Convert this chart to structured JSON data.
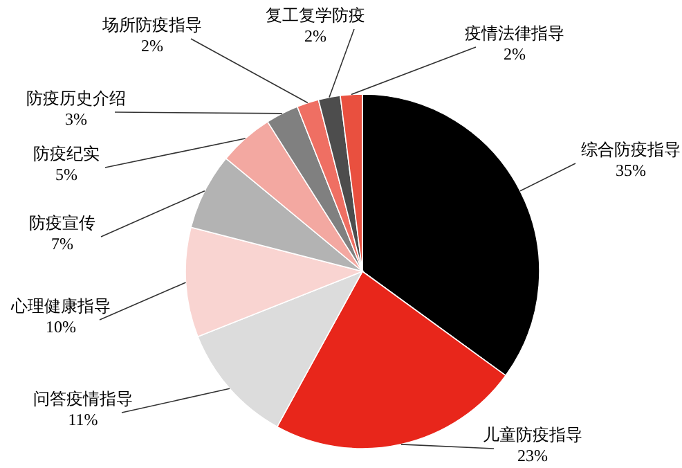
{
  "chart_data": {
    "type": "pie",
    "categories": [
      "综合防疫指导",
      "儿童防疫指导",
      "问答疫情指导",
      "心理健康指导",
      "防疫宣传",
      "防疫纪实",
      "防疫历史介绍",
      "场所防疫指导",
      "复工复学防疫",
      "疫情法律指导"
    ],
    "values": [
      35,
      23,
      11,
      10,
      7,
      5,
      3,
      2,
      2,
      2
    ],
    "value_labels": [
      "35%",
      "23%",
      "11%",
      "10%",
      "7%",
      "5%",
      "3%",
      "2%",
      "2%",
      "2%"
    ],
    "colors": [
      "#000000",
      "#e8261b",
      "#dcdcdc",
      "#f9d4d1",
      "#b3b3b3",
      "#f3a8a1",
      "#808080",
      "#ef6f63",
      "#4d4d4d",
      "#e9503f"
    ]
  }
}
